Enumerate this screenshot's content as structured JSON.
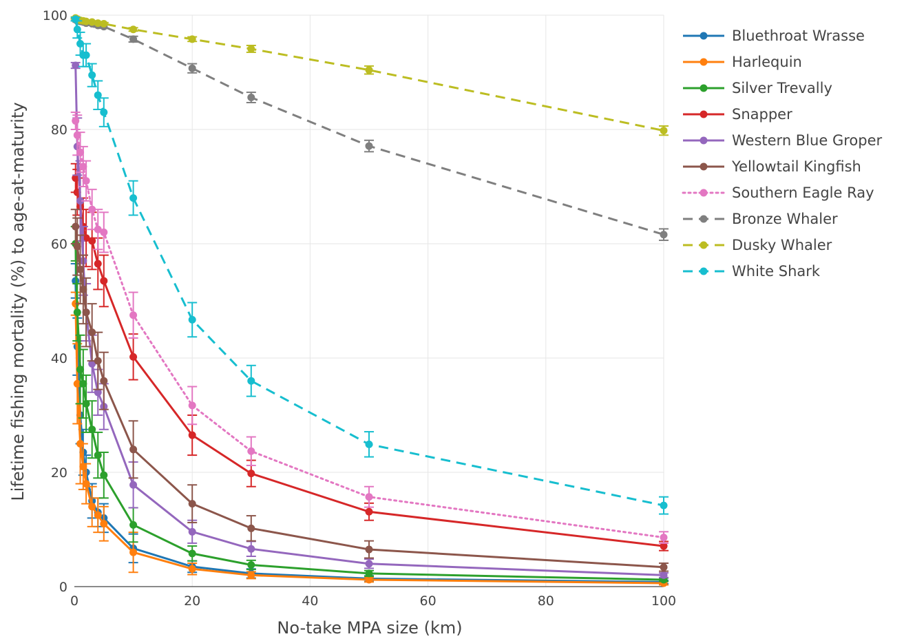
{
  "chart_data": {
    "type": "line",
    "xlabel": "No-take MPA size (km)",
    "ylabel": "Lifetime fishing mortality (%) to age-at-maturity",
    "xlim": [
      0,
      100
    ],
    "ylim": [
      0,
      100
    ],
    "x_ticks": [
      "0",
      "20",
      "40",
      "60",
      "80",
      "100"
    ],
    "y_ticks": [
      "0",
      "20",
      "40",
      "60",
      "80",
      "100"
    ],
    "grid": true,
    "legend_position": "right",
    "x": [
      0.2,
      0.5,
      1,
      1.5,
      2,
      3,
      4,
      5,
      10,
      20,
      30,
      50,
      100
    ],
    "series": [
      {
        "name": "Bluethroat Wrasse",
        "color": "#1f77b4",
        "dash": "solid",
        "values": [
          53.5,
          42,
          30,
          23.5,
          20,
          15,
          13,
          12,
          6.7,
          3.5,
          2.3,
          1.4,
          0.8
        ],
        "errors": [
          3,
          5,
          5,
          4,
          3,
          3,
          2.5,
          2.5,
          2.5,
          1,
          0.8,
          0.5,
          0.3
        ]
      },
      {
        "name": "Harlequin",
        "color": "#ff7f0e",
        "dash": "solid",
        "values": [
          49.5,
          35.5,
          25,
          21,
          18,
          14,
          12.5,
          11,
          6.0,
          3.1,
          2.0,
          1.2,
          0.6
        ],
        "errors": [
          2,
          7,
          7,
          4,
          3.5,
          3.5,
          3,
          3,
          3.5,
          1,
          0.6,
          0.4,
          0.3
        ]
      },
      {
        "name": "Silver Trevally",
        "color": "#2ca02c",
        "dash": "solid",
        "values": [
          60,
          48,
          38,
          35.5,
          32,
          27.5,
          23,
          19.5,
          10.8,
          5.8,
          3.8,
          2.3,
          1.2
        ],
        "errors": [
          3,
          5,
          6,
          6,
          5,
          5,
          4,
          4,
          3,
          1.3,
          0.8,
          0.5,
          0.3
        ]
      },
      {
        "name": "Snapper",
        "color": "#d62728",
        "dash": "solid",
        "values": [
          71.5,
          69,
          66.5,
          63,
          61,
          60.5,
          56.5,
          53.5,
          40.2,
          26.5,
          19.8,
          13.1,
          7.1
        ],
        "errors": [
          2.5,
          4,
          5,
          5,
          5,
          5,
          4.5,
          4.5,
          4,
          3.5,
          2.3,
          1.5,
          0.8
        ]
      },
      {
        "name": "Western Blue Groper",
        "color": "#9467bd",
        "dash": "solid",
        "values": [
          91.2,
          77,
          67.5,
          57,
          48,
          39,
          34,
          31.5,
          17.8,
          9.6,
          6.6,
          4.0,
          2.0
        ],
        "errors": [
          0.5,
          5,
          7,
          6,
          5,
          5,
          4,
          4,
          4,
          2,
          1.3,
          0.8,
          0.4
        ]
      },
      {
        "name": "Yellowtail Kingfish",
        "color": "#8c564b",
        "dash": "solid",
        "values": [
          63,
          59.5,
          55.5,
          52,
          48,
          44.5,
          39.5,
          36,
          24,
          14.5,
          10.2,
          6.5,
          3.4
        ],
        "errors": [
          3,
          5,
          6,
          6,
          6,
          5,
          5,
          5,
          5,
          3.3,
          2.2,
          1.5,
          0.7
        ]
      },
      {
        "name": "Southern Eagle Ray",
        "color": "#e377c2",
        "dash": "dotted",
        "values": [
          81.5,
          79,
          76,
          73.5,
          71,
          66,
          62.5,
          62,
          47.5,
          31.7,
          23.7,
          15.7,
          8.6
        ],
        "errors": [
          1.5,
          3.5,
          3.5,
          3.5,
          3.5,
          3.5,
          3.5,
          3.5,
          4,
          3.3,
          2.5,
          1.8,
          1.0
        ]
      },
      {
        "name": "Bronze Whaler",
        "color": "#7f7f7f",
        "dash": "dashed",
        "values": [
          99.2,
          99,
          98.9,
          98.8,
          98.6,
          98.5,
          98.2,
          98,
          95.8,
          90.7,
          85.6,
          77.1,
          61.6
        ],
        "errors": [
          0.2,
          0.2,
          0.2,
          0.2,
          0.2,
          0.3,
          0.3,
          0.3,
          0.5,
          0.8,
          0.9,
          1.0,
          1.0
        ]
      },
      {
        "name": "Dusky Whaler",
        "color": "#bcbd22",
        "dash": "dashed",
        "values": [
          99.5,
          99.3,
          99.1,
          99,
          98.9,
          98.8,
          98.6,
          98.5,
          97.5,
          95.8,
          94.1,
          90.4,
          79.8
        ],
        "errors": [
          0.2,
          0.2,
          0.2,
          0.2,
          0.2,
          0.2,
          0.2,
          0.2,
          0.3,
          0.4,
          0.6,
          0.7,
          0.8
        ]
      },
      {
        "name": "White Shark",
        "color": "#17becf",
        "dash": "dashed",
        "values": [
          99.3,
          97.5,
          95,
          93,
          93,
          89.5,
          86,
          83,
          68,
          46.7,
          36,
          24.9,
          14.2
        ],
        "errors": [
          0.3,
          1.5,
          2,
          2,
          2,
          2,
          2.5,
          2.5,
          3,
          3,
          2.7,
          2.2,
          1.5
        ]
      }
    ]
  }
}
